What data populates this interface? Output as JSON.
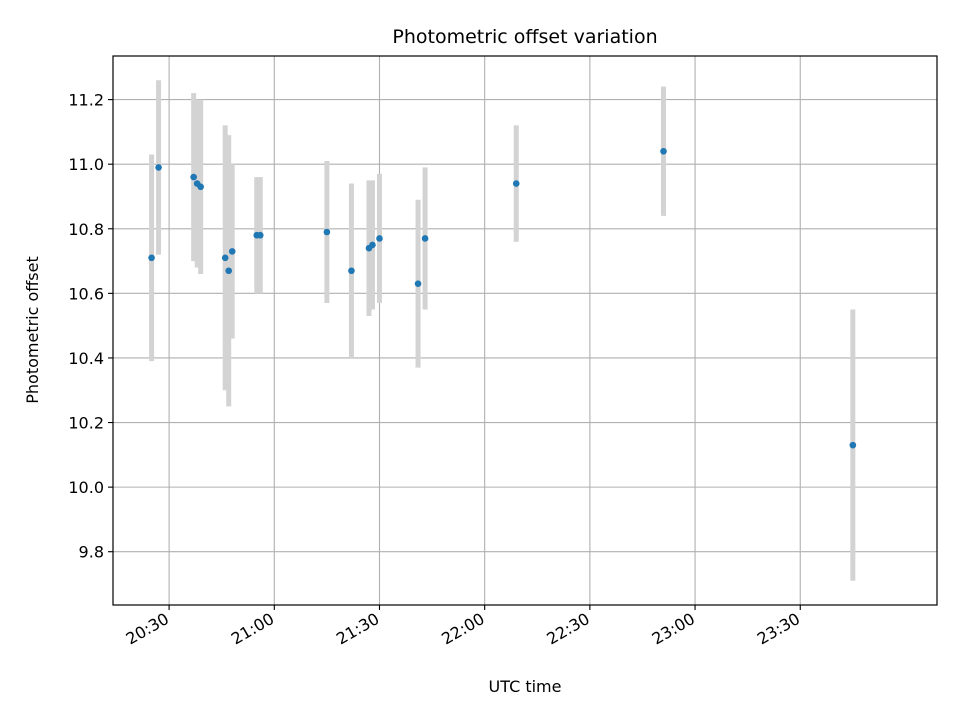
{
  "chart_data": {
    "type": "scatter",
    "title": "Photometric offset variation",
    "xlabel": "UTC time",
    "ylabel": "Photometric offset",
    "x_axis_type": "time",
    "xlim": [
      "20:14:00",
      "24:09:00"
    ],
    "ylim": [
      9.635,
      11.335
    ],
    "x_ticks": [
      "20:30",
      "21:00",
      "21:30",
      "22:00",
      "22:30",
      "23:00",
      "23:30"
    ],
    "y_ticks": [
      9.8,
      10.0,
      10.2,
      10.4,
      10.6,
      10.8,
      11.0,
      11.2
    ],
    "y_tick_labels": [
      "9.8",
      "10.0",
      "10.2",
      "10.4",
      "10.6",
      "10.8",
      "11.0",
      "11.2"
    ],
    "grid": true,
    "x_tick_labels_rotated": true,
    "colors": {
      "point": "#1f77b4",
      "errorbar": "#d3d3d3",
      "grid": "#b0b0b0"
    },
    "series": [
      {
        "points": [
          {
            "x": "20:25:00",
            "y": 10.71,
            "err": 0.32
          },
          {
            "x": "20:27:00",
            "y": 10.99,
            "err": 0.27
          },
          {
            "x": "20:37:00",
            "y": 10.96,
            "err": 0.26
          },
          {
            "x": "20:38:00",
            "y": 10.94,
            "err": 0.26
          },
          {
            "x": "20:39:00",
            "y": 10.93,
            "err": 0.27
          },
          {
            "x": "20:46:00",
            "y": 10.71,
            "err": 0.41
          },
          {
            "x": "20:47:00",
            "y": 10.67,
            "err": 0.42
          },
          {
            "x": "20:48:00",
            "y": 10.73,
            "err": 0.27
          },
          {
            "x": "20:55:00",
            "y": 10.78,
            "err": 0.18
          },
          {
            "x": "20:56:00",
            "y": 10.78,
            "err": 0.18
          },
          {
            "x": "21:15:00",
            "y": 10.79,
            "err": 0.22
          },
          {
            "x": "21:22:00",
            "y": 10.67,
            "err": 0.27
          },
          {
            "x": "21:27:00",
            "y": 10.74,
            "err": 0.21
          },
          {
            "x": "21:28:00",
            "y": 10.75,
            "err": 0.2
          },
          {
            "x": "21:30:00",
            "y": 10.77,
            "err": 0.2
          },
          {
            "x": "21:41:00",
            "y": 10.63,
            "err": 0.26
          },
          {
            "x": "21:43:00",
            "y": 10.77,
            "err": 0.22
          },
          {
            "x": "22:09:00",
            "y": 10.94,
            "err": 0.18
          },
          {
            "x": "22:51:00",
            "y": 11.04,
            "err": 0.2
          },
          {
            "x": "23:45:00",
            "y": 10.13,
            "err": 0.42
          }
        ]
      }
    ]
  }
}
